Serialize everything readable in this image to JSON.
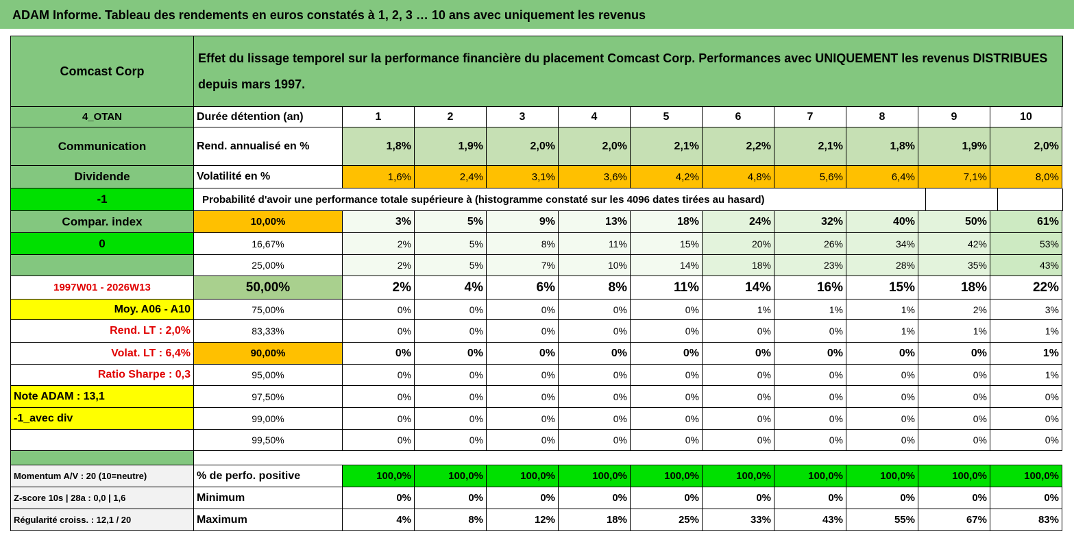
{
  "header": {
    "title": "ADAM Informe. Tableau des rendements en euros constatés à 1, 2, 3 … 10 ans avec uniquement les revenus"
  },
  "table": {
    "corner": "Comcast Corp",
    "description": "Effet du lissage temporel sur la performance financière du placement Comcast Corp. Performances avec UNIQUEMENT les revenus DISTRIBUES depuis mars 1997.",
    "rows": [
      [
        "4_OTAN",
        "Durée détention (an)",
        "1",
        "2",
        "3",
        "4",
        "5",
        "6",
        "7",
        "8",
        "9",
        "10"
      ],
      [
        "Communication",
        "Rend. annualisé en %",
        "1,8%",
        "1,9%",
        "2,0%",
        "2,0%",
        "2,1%",
        "2,2%",
        "2,1%",
        "1,8%",
        "1,9%",
        "2,0%"
      ],
      [
        "Dividende",
        "Volatilité en %",
        "1,6%",
        "2,4%",
        "3,1%",
        "3,6%",
        "4,2%",
        "4,8%",
        "5,6%",
        "6,4%",
        "7,1%",
        "8,0%"
      ],
      [
        "-1",
        "Probabilité d'avoir une performance totale supérieure à (histogramme constaté sur les 4096 dates tirées au hasard)"
      ],
      [
        "Compar. index",
        "10,00%",
        "3%",
        "5%",
        "9%",
        "13%",
        "18%",
        "24%",
        "32%",
        "40%",
        "50%",
        "61%"
      ],
      [
        "0",
        "16,67%",
        "2%",
        "5%",
        "8%",
        "11%",
        "15%",
        "20%",
        "26%",
        "34%",
        "42%",
        "53%"
      ],
      [
        null,
        "25,00%",
        "2%",
        "5%",
        "7%",
        "10%",
        "14%",
        "18%",
        "23%",
        "28%",
        "35%",
        "43%"
      ],
      [
        "1997W01 - 2026W13",
        "50,00%",
        "2%",
        "4%",
        "6%",
        "8%",
        "11%",
        "14%",
        "16%",
        "15%",
        "18%",
        "22%"
      ],
      [
        "Moy. A06 - A10",
        "75,00%",
        "0%",
        "0%",
        "0%",
        "0%",
        "0%",
        "1%",
        "1%",
        "1%",
        "2%",
        "3%"
      ],
      [
        "Rend. LT :   2,0%",
        "83,33%",
        "0%",
        "0%",
        "0%",
        "0%",
        "0%",
        "0%",
        "0%",
        "1%",
        "1%",
        "1%"
      ],
      [
        "Volat. LT :   6,4%",
        "90,00%",
        "0%",
        "0%",
        "0%",
        "0%",
        "0%",
        "0%",
        "0%",
        "0%",
        "0%",
        "1%"
      ],
      [
        "Ratio Sharpe :    0,3",
        "95,00%",
        "0%",
        "0%",
        "0%",
        "0%",
        "0%",
        "0%",
        "0%",
        "0%",
        "0%",
        "1%"
      ],
      [
        "Note ADAM : 13,1",
        "97,50%",
        "0%",
        "0%",
        "0%",
        "0%",
        "0%",
        "0%",
        "0%",
        "0%",
        "0%",
        "0%"
      ],
      [
        "-1_avec div",
        "99,00%",
        "0%",
        "0%",
        "0%",
        "0%",
        "0%",
        "0%",
        "0%",
        "0%",
        "0%",
        "0%"
      ],
      [
        null,
        "99,50%",
        "0%",
        "0%",
        "0%",
        "0%",
        "0%",
        "0%",
        "0%",
        "0%",
        "0%",
        "0%"
      ]
    ],
    "footer_rows": [
      [
        "Momentum A/V : 20 (10=neutre)",
        "% de perfo. positive",
        "100,0%",
        "100,0%",
        "100,0%",
        "100,0%",
        "100,0%",
        "100,0%",
        "100,0%",
        "100,0%",
        "100,0%",
        "100,0%"
      ],
      [
        "Z-score 10s | 28a : 0,0 | 1,6",
        "Minimum",
        "0%",
        "0%",
        "0%",
        "0%",
        "0%",
        "0%",
        "0%",
        "0%",
        "0%",
        "0%"
      ],
      [
        "Régularité croiss. : 12,1 / 20",
        "Maximum",
        "4%",
        "8%",
        "12%",
        "18%",
        "25%",
        "33%",
        "43%",
        "55%",
        "67%",
        "83%"
      ]
    ]
  }
}
